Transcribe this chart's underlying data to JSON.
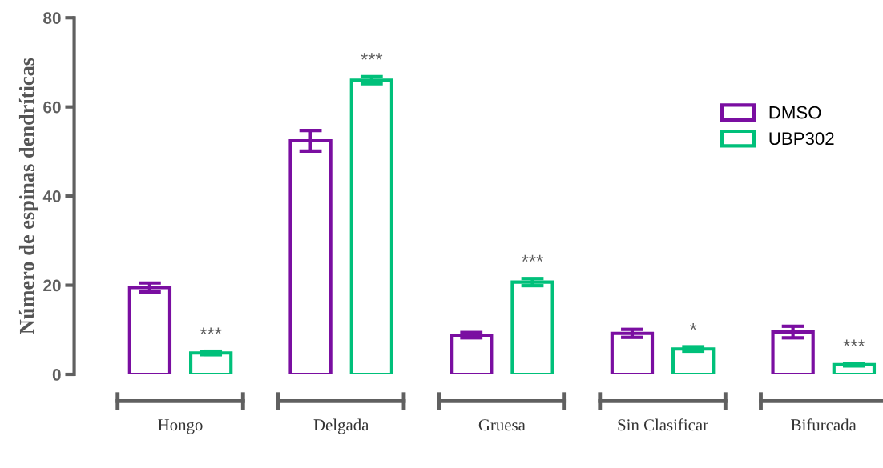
{
  "chart_data": {
    "type": "bar",
    "ylabel": "Número de espinas dendríticas",
    "categories": [
      "Hongo",
      "Delgada",
      "Gruesa",
      "Sin Clasificar",
      "Bifurcada"
    ],
    "series": [
      {
        "name": "DMSO",
        "color": "#7a0ea1",
        "values": [
          19.5,
          52.4,
          8.8,
          9.2,
          9.5
        ],
        "errors": [
          1.0,
          2.3,
          0.6,
          0.9,
          1.3
        ]
      },
      {
        "name": "UBP302",
        "color": "#00c07a",
        "values": [
          4.8,
          66.0,
          20.7,
          5.7,
          2.2
        ],
        "errors": [
          0.4,
          0.8,
          0.8,
          0.5,
          0.3
        ]
      }
    ],
    "ylim": [
      0,
      80
    ],
    "yticks": [
      0,
      20,
      40,
      60,
      80
    ],
    "grid": false,
    "legend": "right",
    "annotations": [
      "***",
      "***",
      "***",
      "*",
      "***"
    ]
  }
}
